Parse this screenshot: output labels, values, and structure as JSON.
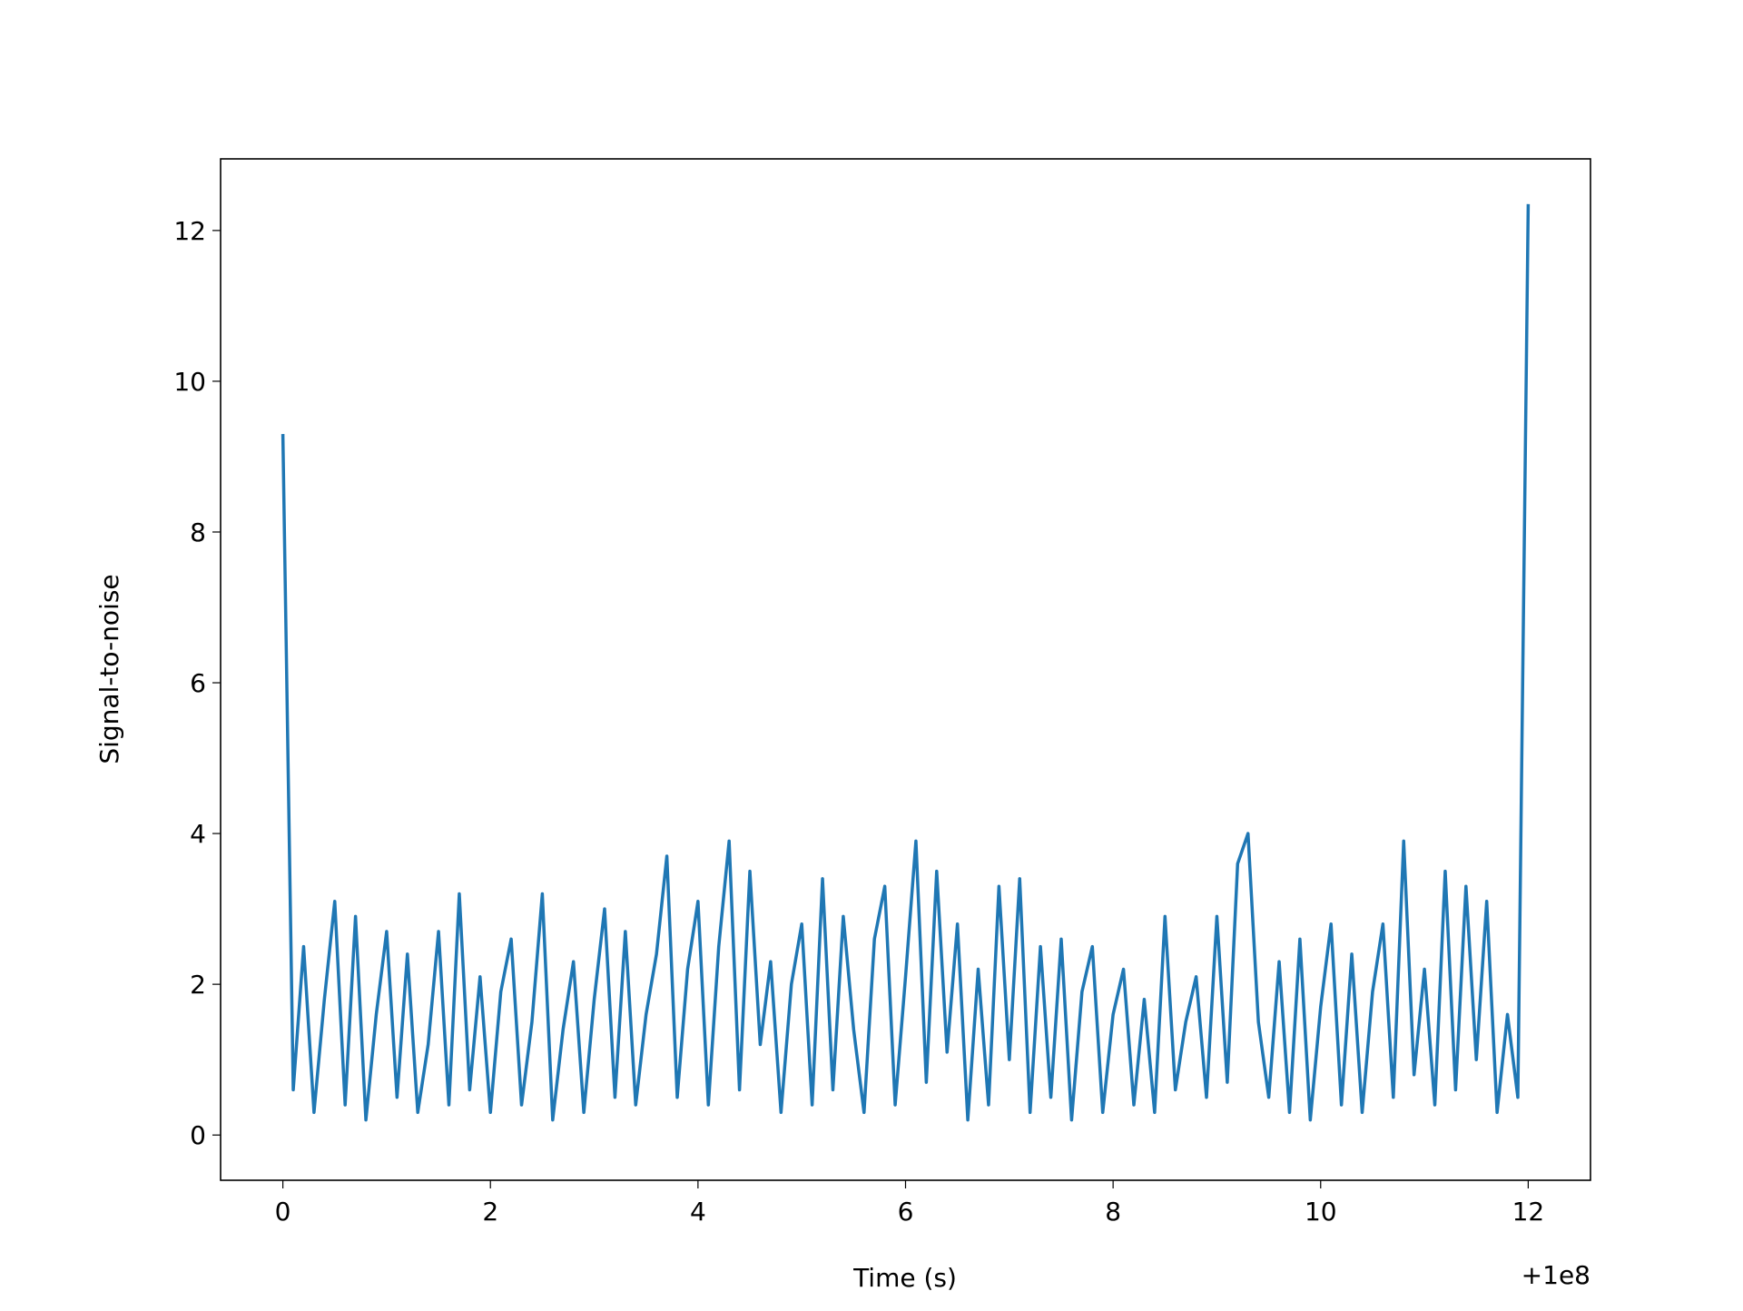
{
  "chart_data": {
    "type": "line",
    "x_label": "Time (s)",
    "y_label": "Signal-to-noise",
    "x_offset_label": "+1e8",
    "xlim": [
      -0.6,
      12.6
    ],
    "ylim": [
      -0.6,
      12.95
    ],
    "xticks": [
      0,
      2,
      4,
      6,
      8,
      10,
      12
    ],
    "yticks": [
      0,
      2,
      4,
      6,
      8,
      10,
      12
    ],
    "grid": false,
    "series": [
      {
        "color": "#1f77b4",
        "x": [
          0,
          0.1,
          0.2,
          0.3,
          0.4,
          0.5,
          0.6,
          0.7,
          0.8,
          0.9,
          1,
          1.1,
          1.2,
          1.3,
          1.4,
          1.5,
          1.6,
          1.7,
          1.8,
          1.9,
          2,
          2.1,
          2.2,
          2.3,
          2.4,
          2.5,
          2.6,
          2.7,
          2.8,
          2.9,
          3,
          3.1,
          3.2,
          3.3,
          3.4,
          3.5,
          3.6,
          3.7,
          3.8,
          3.9,
          4,
          4.1,
          4.2,
          4.3,
          4.4,
          4.5,
          4.6,
          4.7,
          4.8,
          4.9,
          5,
          5.1,
          5.2,
          5.3,
          5.4,
          5.5,
          5.6,
          5.7,
          5.8,
          5.9,
          6,
          6.1,
          6.2,
          6.3,
          6.4,
          6.5,
          6.6,
          6.7,
          6.8,
          6.9,
          7,
          7.1,
          7.2,
          7.3,
          7.4,
          7.5,
          7.6,
          7.7,
          7.8,
          7.9,
          8,
          8.1,
          8.2,
          8.3,
          8.4,
          8.5,
          8.6,
          8.7,
          8.8,
          8.9,
          9,
          9.1,
          9.2,
          9.3,
          9.4,
          9.5,
          9.6,
          9.7,
          9.8,
          9.9,
          10,
          10.1,
          10.2,
          10.3,
          10.4,
          10.5,
          10.6,
          10.7,
          10.8,
          10.9,
          11,
          11.1,
          11.2,
          11.3,
          11.4,
          11.5,
          11.6,
          11.7,
          11.8,
          11.9,
          12
        ],
        "values": [
          9.3,
          0.6,
          2.5,
          0.3,
          1.8,
          3.1,
          0.4,
          2.9,
          0.2,
          1.6,
          2.7,
          0.5,
          2.4,
          0.3,
          1.2,
          2.7,
          0.4,
          3.2,
          0.6,
          2.1,
          0.3,
          1.9,
          2.6,
          0.4,
          1.5,
          3.2,
          0.2,
          1.4,
          2.3,
          0.3,
          1.8,
          3.0,
          0.5,
          2.7,
          0.4,
          1.6,
          2.4,
          3.7,
          0.5,
          2.2,
          3.1,
          0.4,
          2.5,
          3.9,
          0.6,
          3.5,
          1.2,
          2.3,
          0.3,
          2.0,
          2.8,
          0.4,
          3.4,
          0.6,
          2.9,
          1.4,
          0.3,
          2.6,
          3.3,
          0.4,
          2.1,
          3.9,
          0.7,
          3.5,
          1.1,
          2.8,
          0.2,
          2.2,
          0.4,
          3.3,
          1.0,
          3.4,
          0.3,
          2.5,
          0.5,
          2.6,
          0.2,
          1.9,
          2.5,
          0.3,
          1.6,
          2.2,
          0.4,
          1.8,
          0.3,
          2.9,
          0.6,
          1.5,
          2.1,
          0.5,
          2.9,
          0.7,
          3.6,
          4.0,
          1.5,
          0.5,
          2.3,
          0.3,
          2.6,
          0.2,
          1.7,
          2.8,
          0.4,
          2.4,
          0.3,
          1.9,
          2.8,
          0.5,
          3.9,
          0.8,
          2.2,
          0.4,
          3.5,
          0.6,
          3.3,
          1.0,
          3.1,
          0.3,
          1.6,
          0.5,
          12.35
        ]
      }
    ]
  }
}
